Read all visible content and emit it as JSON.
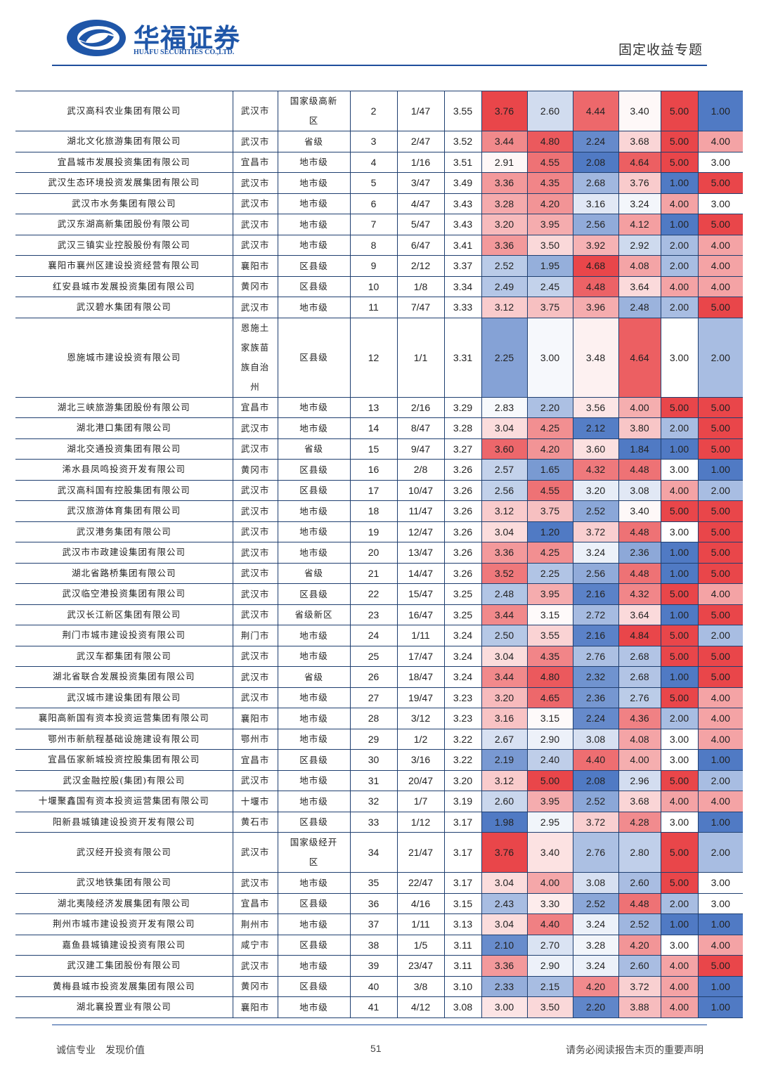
{
  "header": {
    "logo_cn": "华福证券",
    "logo_en": "HUAFU SECURITIES CO.,LTD.",
    "section": "固定收益专题"
  },
  "table": {
    "rows": [
      [
        "武汉高科农业集团有限公司",
        "武汉市",
        "国家级高新区",
        "2",
        "1/47",
        "3.55",
        "3.76",
        "2.60",
        "4.44",
        "3.40",
        "5.00",
        "1.00"
      ],
      [
        "湖北文化旅游集团有限公司",
        "武汉市",
        "省级",
        "3",
        "2/47",
        "3.52",
        "3.44",
        "4.80",
        "2.24",
        "3.68",
        "5.00",
        "4.00"
      ],
      [
        "宜昌城市发展投资集团有限公司",
        "宜昌市",
        "地市级",
        "4",
        "1/16",
        "3.51",
        "2.91",
        "4.55",
        "2.08",
        "4.64",
        "5.00",
        "3.00"
      ],
      [
        "武汉生态环境投资发展集团有限公司",
        "武汉市",
        "地市级",
        "5",
        "3/47",
        "3.49",
        "3.36",
        "4.35",
        "2.68",
        "3.76",
        "1.00",
        "5.00"
      ],
      [
        "武汉市水务集团有限公司",
        "武汉市",
        "地市级",
        "6",
        "4/47",
        "3.43",
        "3.28",
        "4.20",
        "3.16",
        "3.24",
        "4.00",
        "3.00"
      ],
      [
        "武汉东湖高新集团股份有限公司",
        "武汉市",
        "地市级",
        "7",
        "5/47",
        "3.43",
        "3.20",
        "3.95",
        "2.56",
        "4.12",
        "1.00",
        "5.00"
      ],
      [
        "武汉三镇实业控股股份有限公司",
        "武汉市",
        "地市级",
        "8",
        "6/47",
        "3.41",
        "3.36",
        "3.50",
        "3.92",
        "2.92",
        "2.00",
        "4.00"
      ],
      [
        "襄阳市襄州区建设投资经营有限公司",
        "襄阳市",
        "区县级",
        "9",
        "2/12",
        "3.37",
        "2.52",
        "1.95",
        "4.68",
        "4.08",
        "2.00",
        "4.00"
      ],
      [
        "红安县城市发展投资集团有限公司",
        "黄冈市",
        "区县级",
        "10",
        "1/8",
        "3.34",
        "2.49",
        "2.45",
        "4.48",
        "3.64",
        "4.00",
        "4.00"
      ],
      [
        "武汉碧水集团有限公司",
        "武汉市",
        "地市级",
        "11",
        "7/47",
        "3.33",
        "3.12",
        "3.75",
        "3.96",
        "2.48",
        "2.00",
        "5.00"
      ],
      [
        "恩施城市建设投资有限公司",
        "恩施土家族苗族自治州",
        "区县级",
        "12",
        "1/1",
        "3.31",
        "2.25",
        "3.00",
        "3.48",
        "4.64",
        "3.00",
        "2.00"
      ],
      [
        "湖北三峡旅游集团股份有限公司",
        "宜昌市",
        "地市级",
        "13",
        "2/16",
        "3.29",
        "2.83",
        "2.20",
        "3.56",
        "4.00",
        "5.00",
        "5.00"
      ],
      [
        "湖北港口集团有限公司",
        "武汉市",
        "地市级",
        "14",
        "8/47",
        "3.28",
        "3.04",
        "4.25",
        "2.12",
        "3.80",
        "2.00",
        "5.00"
      ],
      [
        "湖北交通投资集团有限公司",
        "武汉市",
        "省级",
        "15",
        "9/47",
        "3.27",
        "3.60",
        "4.20",
        "3.60",
        "1.84",
        "1.00",
        "5.00"
      ],
      [
        "浠水县凤鸣投资开发有限公司",
        "黄冈市",
        "区县级",
        "16",
        "2/8",
        "3.26",
        "2.57",
        "1.65",
        "4.32",
        "4.48",
        "3.00",
        "1.00"
      ],
      [
        "武汉高科国有控股集团有限公司",
        "武汉市",
        "区县级",
        "17",
        "10/47",
        "3.26",
        "2.56",
        "4.55",
        "3.20",
        "3.08",
        "4.00",
        "2.00"
      ],
      [
        "武汉旅游体育集团有限公司",
        "武汉市",
        "地市级",
        "18",
        "11/47",
        "3.26",
        "3.12",
        "3.75",
        "2.52",
        "3.40",
        "5.00",
        "5.00"
      ],
      [
        "武汉港务集团有限公司",
        "武汉市",
        "地市级",
        "19",
        "12/47",
        "3.26",
        "3.04",
        "1.20",
        "3.72",
        "4.48",
        "3.00",
        "5.00"
      ],
      [
        "武汉市市政建设集团有限公司",
        "武汉市",
        "地市级",
        "20",
        "13/47",
        "3.26",
        "3.36",
        "4.25",
        "3.24",
        "2.36",
        "1.00",
        "5.00"
      ],
      [
        "湖北省路桥集团有限公司",
        "武汉市",
        "省级",
        "21",
        "14/47",
        "3.26",
        "3.52",
        "2.25",
        "2.56",
        "4.48",
        "1.00",
        "5.00"
      ],
      [
        "武汉临空港投资集团有限公司",
        "武汉市",
        "区县级",
        "22",
        "15/47",
        "3.25",
        "2.48",
        "3.95",
        "2.16",
        "4.32",
        "5.00",
        "4.00"
      ],
      [
        "武汉长江新区集团有限公司",
        "武汉市",
        "省级新区",
        "23",
        "16/47",
        "3.25",
        "3.44",
        "3.15",
        "2.72",
        "3.64",
        "1.00",
        "5.00"
      ],
      [
        "荆门市城市建设投资有限公司",
        "荆门市",
        "地市级",
        "24",
        "1/11",
        "3.24",
        "2.50",
        "3.55",
        "2.16",
        "4.84",
        "5.00",
        "2.00"
      ],
      [
        "武汉车都集团有限公司",
        "武汉市",
        "地市级",
        "25",
        "17/47",
        "3.24",
        "3.04",
        "4.35",
        "2.76",
        "2.68",
        "5.00",
        "5.00"
      ],
      [
        "湖北省联合发展投资集团有限公司",
        "武汉市",
        "省级",
        "26",
        "18/47",
        "3.24",
        "3.44",
        "4.80",
        "2.32",
        "2.68",
        "1.00",
        "5.00"
      ],
      [
        "武汉城市建设集团有限公司",
        "武汉市",
        "地市级",
        "27",
        "19/47",
        "3.23",
        "3.20",
        "4.65",
        "2.36",
        "2.76",
        "5.00",
        "4.00"
      ],
      [
        "襄阳高新国有资本投资运营集团有限公司",
        "襄阳市",
        "地市级",
        "28",
        "3/12",
        "3.23",
        "3.16",
        "3.15",
        "2.24",
        "4.36",
        "2.00",
        "4.00"
      ],
      [
        "鄂州市新航程基础设施建设有限公司",
        "鄂州市",
        "地市级",
        "29",
        "1/2",
        "3.22",
        "2.67",
        "2.90",
        "3.08",
        "4.08",
        "3.00",
        "4.00"
      ],
      [
        "宜昌伍家新城投资控股集团有限公司",
        "宜昌市",
        "区县级",
        "30",
        "3/16",
        "3.22",
        "2.19",
        "2.40",
        "4.40",
        "4.00",
        "3.00",
        "1.00"
      ],
      [
        "武汉金融控股(集团)有限公司",
        "武汉市",
        "地市级",
        "31",
        "20/47",
        "3.20",
        "3.12",
        "5.00",
        "2.08",
        "2.96",
        "5.00",
        "2.00"
      ],
      [
        "十堰聚鑫国有资本投资运营集团有限公司",
        "十堰市",
        "地市级",
        "32",
        "1/7",
        "3.19",
        "2.60",
        "3.95",
        "2.52",
        "3.68",
        "4.00",
        "4.00"
      ],
      [
        "阳新县城镇建设投资开发有限公司",
        "黄石市",
        "区县级",
        "33",
        "1/12",
        "3.17",
        "1.98",
        "2.95",
        "3.72",
        "4.28",
        "3.00",
        "1.00"
      ],
      [
        "武汉经开投资有限公司",
        "武汉市",
        "国家级经开区",
        "34",
        "21/47",
        "3.17",
        "3.76",
        "3.40",
        "2.76",
        "2.80",
        "5.00",
        "2.00"
      ],
      [
        "武汉地铁集团有限公司",
        "武汉市",
        "地市级",
        "35",
        "22/47",
        "3.17",
        "3.04",
        "4.00",
        "3.08",
        "2.60",
        "5.00",
        "3.00"
      ],
      [
        "湖北夷陵经济发展集团有限公司",
        "宜昌市",
        "区县级",
        "36",
        "4/16",
        "3.15",
        "2.43",
        "3.30",
        "2.52",
        "4.48",
        "2.00",
        "3.00"
      ],
      [
        "荆州市城市建设投资开发有限公司",
        "荆州市",
        "地市级",
        "37",
        "1/11",
        "3.13",
        "3.04",
        "4.40",
        "3.24",
        "2.52",
        "1.00",
        "1.00"
      ],
      [
        "嘉鱼县城镇建设投资有限公司",
        "咸宁市",
        "区县级",
        "38",
        "1/5",
        "3.11",
        "2.10",
        "2.70",
        "3.28",
        "4.20",
        "3.00",
        "4.00"
      ],
      [
        "武汉建工集团股份有限公司",
        "武汉市",
        "地市级",
        "39",
        "23/47",
        "3.11",
        "3.36",
        "2.90",
        "3.24",
        "2.60",
        "4.00",
        "5.00"
      ],
      [
        "黄梅县城市投资发展集团有限公司",
        "黄冈市",
        "区县级",
        "40",
        "3/8",
        "3.10",
        "2.33",
        "2.15",
        "4.20",
        "3.72",
        "4.00",
        "1.00"
      ],
      [
        "湖北襄投置业有限公司",
        "襄阳市",
        "地市级",
        "41",
        "4/12",
        "3.08",
        "3.00",
        "3.50",
        "2.20",
        "3.88",
        "4.00",
        "1.00"
      ]
    ]
  },
  "footer": {
    "slogan": "诚信专业　发现价值",
    "page": "51",
    "disclaimer": "请务必阅读报告末页的重要声明"
  }
}
